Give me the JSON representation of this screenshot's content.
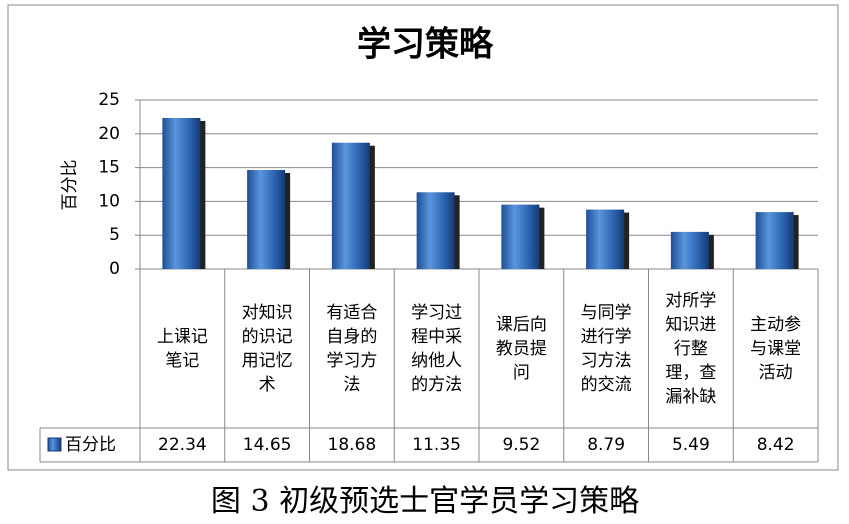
{
  "chart_data": {
    "type": "bar",
    "title": "学习策略",
    "y_label": "百分比",
    "caption": "图 3 初级预选士官学员学习策略",
    "categories": [
      "上课记笔记",
      "对知识的识记用记忆术",
      "有适合自身的学习方法",
      "学习过程中采纳他人的方法",
      "课后向教员提问",
      "与同学进行学习方法的交流",
      "对所学知识进行整理，查漏补缺",
      "主动参与课堂活动"
    ],
    "series": [
      {
        "name": "百分比",
        "color": "#3a75c4",
        "values": [
          22.34,
          14.65,
          18.68,
          11.35,
          9.52,
          8.79,
          5.49,
          8.42
        ]
      }
    ],
    "ylim": [
      0,
      25
    ],
    "yticks": [
      0,
      5,
      10,
      15,
      20,
      25
    ],
    "grid": true
  }
}
